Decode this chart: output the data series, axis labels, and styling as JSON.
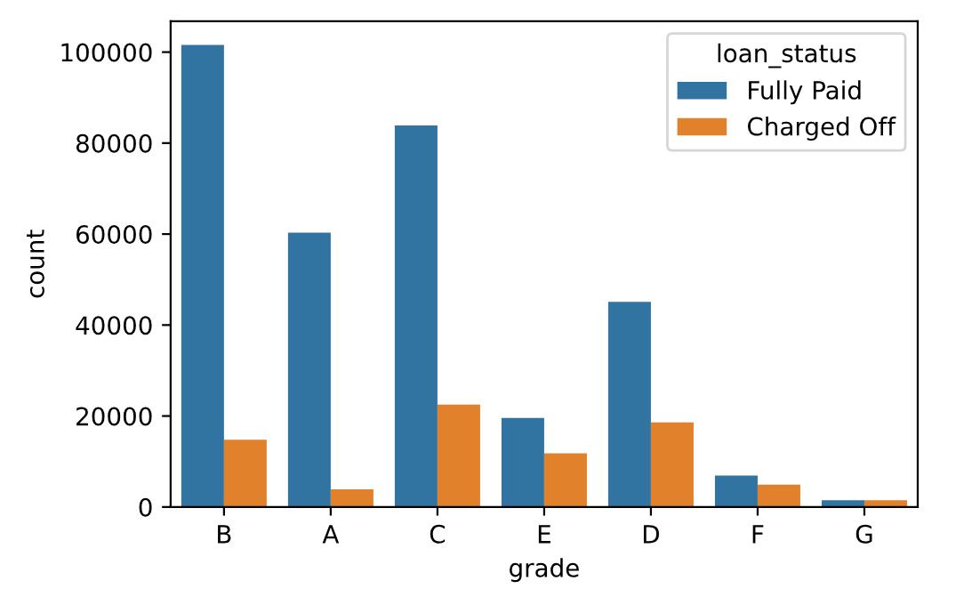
{
  "chart_data": {
    "type": "bar",
    "xlabel": "grade",
    "ylabel": "count",
    "legend_title": "loan_status",
    "categories": [
      "B",
      "A",
      "C",
      "E",
      "D",
      "F",
      "G"
    ],
    "series": [
      {
        "name": "Fully Paid",
        "color": "#3274a1",
        "values": [
          101600,
          60300,
          83900,
          19600,
          45100,
          6900,
          1500
        ]
      },
      {
        "name": "Charged Off",
        "color": "#e1812c",
        "values": [
          14800,
          3900,
          22500,
          11800,
          18600,
          4900,
          1500
        ]
      }
    ],
    "ylim": [
      0,
      106800
    ],
    "yticks": [
      0,
      20000,
      40000,
      60000,
      80000,
      100000
    ],
    "grid": false,
    "legend": "top right"
  }
}
